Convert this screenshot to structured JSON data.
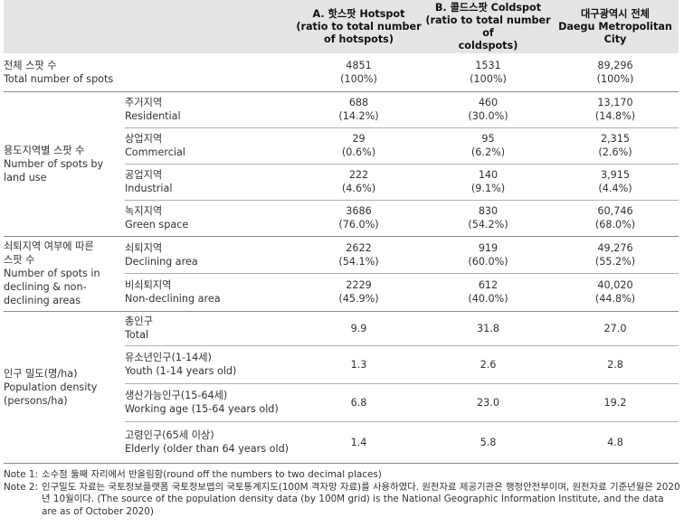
{
  "header": {
    "col_a": [
      "A. 핫스팟 Hotspot",
      "(ratio to total number",
      "of hotspots)"
    ],
    "col_b": [
      "B. 콜드스팟 Coldspot",
      "(ratio to total number of",
      "coldspots)"
    ],
    "col_c": [
      "대구광역시 전체",
      "Daegu Metropolitan",
      "City"
    ]
  },
  "total": {
    "label": [
      "전체 스팟 수",
      "Total number of spots"
    ],
    "a": [
      "4851",
      "(100%)"
    ],
    "b": [
      "1531",
      "(100%)"
    ],
    "c": [
      "89,296",
      "(100%)"
    ]
  },
  "land_use": {
    "label": [
      "용도지역별 스팟 수",
      "Number of spots by",
      "land use"
    ],
    "rows": [
      {
        "sub": [
          "주거지역",
          "Residential"
        ],
        "a": [
          "688",
          "(14.2%)"
        ],
        "b": [
          "460",
          "(30.0%)"
        ],
        "c": [
          "13,170",
          "(14.8%)"
        ]
      },
      {
        "sub": [
          "상업지역",
          "Commercial"
        ],
        "a": [
          "29",
          "(0.6%)"
        ],
        "b": [
          "95",
          "(6.2%)"
        ],
        "c": [
          "2,315",
          "(2.6%)"
        ]
      },
      {
        "sub": [
          "공업지역",
          "Industrial"
        ],
        "a": [
          "222",
          "(4.6%)"
        ],
        "b": [
          "140",
          "(9.1%)"
        ],
        "c": [
          "3,915",
          "(4.4%)"
        ]
      },
      {
        "sub": [
          "녹지지역",
          "Green space"
        ],
        "a": [
          "3686",
          "(76.0%)"
        ],
        "b": [
          "830",
          "(54.2%)"
        ],
        "c": [
          "60,746",
          "(68.0%)"
        ]
      }
    ]
  },
  "declining": {
    "label": [
      "쇠퇴지역 여부에 따른",
      "스팟 수",
      "Number of spots in",
      "declining & non-",
      "declining areas"
    ],
    "rows": [
      {
        "sub": [
          "쇠퇴지역",
          "Declining area"
        ],
        "a": [
          "2622",
          "(54.1%)"
        ],
        "b": [
          "919",
          "(60.0%)"
        ],
        "c": [
          "49,276",
          "(55.2%)"
        ]
      },
      {
        "sub": [
          "비쇠퇴지역",
          "Non-declining area"
        ],
        "a": [
          "2229",
          "(45.9%)"
        ],
        "b": [
          "612",
          "(40.0%)"
        ],
        "c": [
          "40,020",
          "(44.8%)"
        ]
      }
    ]
  },
  "density": {
    "label": [
      "인구 밀도(명/ha)",
      "Population density",
      "(persons/ha)"
    ],
    "rows": [
      {
        "sub": [
          "총인구",
          "Total"
        ],
        "a": "9.9",
        "b": "31.8",
        "c": "27.0"
      },
      {
        "sub": [
          "유소년인구(1-14세)",
          "Youth (1-14 years old)"
        ],
        "a": "1.3",
        "b": "2.6",
        "c": "2.8"
      },
      {
        "sub": [
          "생산가능인구(15-64세)",
          "Working age (15-64 years old)"
        ],
        "a": "6.8",
        "b": "23.0",
        "c": "19.2"
      },
      {
        "sub": [
          "고령인구(65세 이상)",
          "Elderly (older than 64 years old)"
        ],
        "a": "1.4",
        "b": "5.8",
        "c": "4.8"
      }
    ]
  },
  "notes": [
    {
      "label": "Note 1:",
      "text": "소수점 둘째 자리에서 반올림함(round off the numbers to two decimal places)"
    },
    {
      "label": "Note 2:",
      "text": "인구밀도 자료는 국토정보플랫폼 국토정보맵의 국토통계지도(100M 격자망 자료)를 사용하였다. 원천자료 제공기관은 행정안전부이며, 원천자료 기준년월은 2020년 10월이다. (The source of the population density data (by 100M grid) is the National Geographic Information Institute, and the data are as of October 2020)"
    }
  ]
}
